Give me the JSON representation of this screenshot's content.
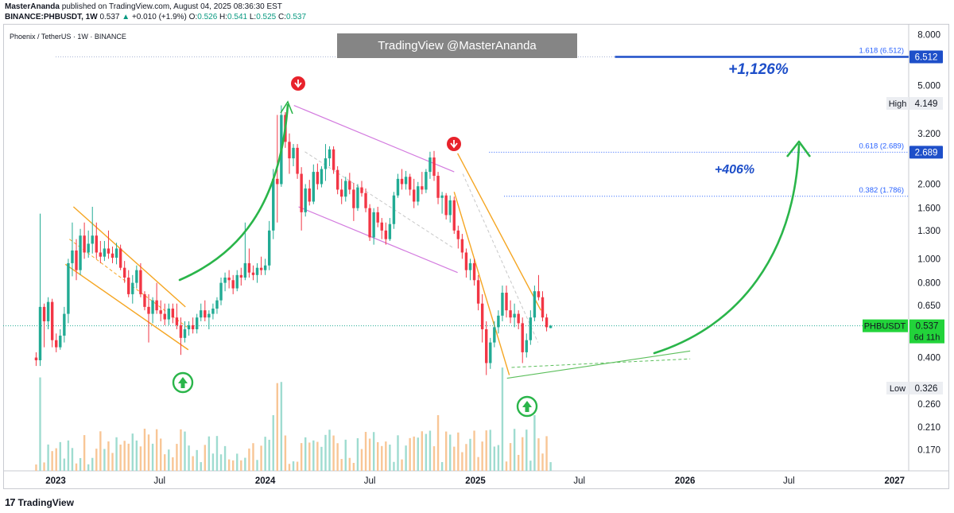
{
  "header": {
    "author": "MasterAnanda",
    "published_text": "published on TradingView.com, August 04, 2025 08:36:30 EST",
    "pair": "BINANCE:PHBUSDT, 1W",
    "last": "0.537",
    "change": "+0.010 (+1.9%)",
    "o_label": "O:",
    "o_val": "0.526",
    "h_label": "H:",
    "h_val": "0.541",
    "l_label": "L:",
    "l_val": "0.525",
    "c_label": "C:",
    "c_val": "0.537"
  },
  "symbol_title": "Phoenix / TetherUS · 1W · BINANCE",
  "watermark": "TradingView @MasterAnanda",
  "footer": {
    "brand": "TradingView",
    "mark": "17"
  },
  "colors": {
    "up": "#22ab94",
    "down": "#f23645",
    "fib_blue": "#2962ff",
    "target_blue": "#1e4fc9",
    "arrow_green": "#2ab54a",
    "channel_orange": "#f5a623",
    "channel_purple": "#d37bdf",
    "price_label_green": "#22d33a"
  },
  "chart_data": {
    "type": "candlestick",
    "scale": "log",
    "ylim": [
      0.155,
      8.4
    ],
    "y_ticks": [
      "8.000",
      "5.000",
      "3.200",
      "2.000",
      "1.600",
      "1.300",
      "1.000",
      "0.800",
      "0.650",
      "0.400",
      "0.260",
      "0.210",
      "0.170"
    ],
    "x_ticks": [
      "2023",
      "Jul",
      "2024",
      "Jul",
      "2025",
      "Jul",
      "2026",
      "Jul",
      "2027"
    ],
    "x_start": "2022-11-28",
    "interval": "1W",
    "candles": [
      [
        0.4,
        0.42,
        0.37,
        0.39
      ],
      [
        0.39,
        1.52,
        0.37,
        0.64
      ],
      [
        0.64,
        0.66,
        0.44,
        0.56
      ],
      [
        0.56,
        0.7,
        0.52,
        0.67
      ],
      [
        0.67,
        0.69,
        0.44,
        0.47
      ],
      [
        0.47,
        0.5,
        0.42,
        0.44
      ],
      [
        0.44,
        0.52,
        0.43,
        0.49
      ],
      [
        0.49,
        0.64,
        0.46,
        0.6
      ],
      [
        0.6,
        1.0,
        0.55,
        0.96
      ],
      [
        0.96,
        1.4,
        0.85,
        1.08
      ],
      [
        1.08,
        1.2,
        0.82,
        0.9
      ],
      [
        0.9,
        1.32,
        0.86,
        1.24
      ],
      [
        1.24,
        1.4,
        1.0,
        1.06
      ],
      [
        1.06,
        1.3,
        1.01,
        1.15
      ],
      [
        1.15,
        1.62,
        1.05,
        1.24
      ],
      [
        1.24,
        1.4,
        1.0,
        1.06
      ],
      [
        1.06,
        1.18,
        0.96,
        1.02
      ],
      [
        1.02,
        1.18,
        0.98,
        1.1
      ],
      [
        1.1,
        1.3,
        1.0,
        1.05
      ],
      [
        1.05,
        1.12,
        0.96,
        1.01
      ],
      [
        1.01,
        1.16,
        0.95,
        1.1
      ],
      [
        1.1,
        1.14,
        0.9,
        0.92
      ],
      [
        0.92,
        0.98,
        0.8,
        0.84
      ],
      [
        0.84,
        0.9,
        0.7,
        0.72
      ],
      [
        0.72,
        0.86,
        0.66,
        0.8
      ],
      [
        0.8,
        0.94,
        0.76,
        0.9
      ],
      [
        0.9,
        0.96,
        0.7,
        0.72
      ],
      [
        0.72,
        0.74,
        0.62,
        0.64
      ],
      [
        0.64,
        0.72,
        0.46,
        0.6
      ],
      [
        0.6,
        0.7,
        0.55,
        0.68
      ],
      [
        0.68,
        0.8,
        0.6,
        0.62
      ],
      [
        0.62,
        0.68,
        0.56,
        0.6
      ],
      [
        0.6,
        0.66,
        0.54,
        0.57
      ],
      [
        0.57,
        0.66,
        0.54,
        0.63
      ],
      [
        0.63,
        0.66,
        0.55,
        0.58
      ],
      [
        0.58,
        0.66,
        0.52,
        0.54
      ],
      [
        0.54,
        0.58,
        0.41,
        0.48
      ],
      [
        0.48,
        0.56,
        0.46,
        0.52
      ],
      [
        0.52,
        0.56,
        0.49,
        0.54
      ],
      [
        0.54,
        0.58,
        0.5,
        0.52
      ],
      [
        0.52,
        0.6,
        0.5,
        0.58
      ],
      [
        0.58,
        0.66,
        0.56,
        0.62
      ],
      [
        0.62,
        0.68,
        0.56,
        0.58
      ],
      [
        0.58,
        0.62,
        0.52,
        0.6
      ],
      [
        0.6,
        0.66,
        0.57,
        0.63
      ],
      [
        0.63,
        0.7,
        0.6,
        0.68
      ],
      [
        0.68,
        0.84,
        0.65,
        0.8
      ],
      [
        0.8,
        0.88,
        0.74,
        0.84
      ],
      [
        0.84,
        0.9,
        0.76,
        0.82
      ],
      [
        0.82,
        0.86,
        0.72,
        0.76
      ],
      [
        0.76,
        0.9,
        0.74,
        0.86
      ],
      [
        0.86,
        0.92,
        0.78,
        0.84
      ],
      [
        0.84,
        1.4,
        0.82,
        0.96
      ],
      [
        0.96,
        1.1,
        0.84,
        0.88
      ],
      [
        0.88,
        0.94,
        0.82,
        0.86
      ],
      [
        0.86,
        0.96,
        0.8,
        0.92
      ],
      [
        0.92,
        1.02,
        0.86,
        0.9
      ],
      [
        0.9,
        1.0,
        0.86,
        0.94
      ],
      [
        0.94,
        1.42,
        0.9,
        1.3
      ],
      [
        1.3,
        2.3,
        1.2,
        2.1
      ],
      [
        2.1,
        3.8,
        1.4,
        2.0
      ],
      [
        2.0,
        4.15,
        1.95,
        3.8
      ],
      [
        3.8,
        3.9,
        2.8,
        2.96
      ],
      [
        2.96,
        3.2,
        2.2,
        2.54
      ],
      [
        2.54,
        2.9,
        2.36,
        2.8
      ],
      [
        2.8,
        2.9,
        2.1,
        2.2
      ],
      [
        2.2,
        2.34,
        1.3,
        1.54
      ],
      [
        1.54,
        2.0,
        1.48,
        1.92
      ],
      [
        1.92,
        2.08,
        1.64,
        1.7
      ],
      [
        1.7,
        2.4,
        1.66,
        2.24
      ],
      [
        2.24,
        2.42,
        1.9,
        2.0
      ],
      [
        2.0,
        2.36,
        1.94,
        2.3
      ],
      [
        2.3,
        2.9,
        2.06,
        2.54
      ],
      [
        2.54,
        2.84,
        2.36,
        2.76
      ],
      [
        2.76,
        2.84,
        2.2,
        2.28
      ],
      [
        2.28,
        2.36,
        1.82,
        1.9
      ],
      [
        1.9,
        2.1,
        1.66,
        1.78
      ],
      [
        1.78,
        2.14,
        1.7,
        2.06
      ],
      [
        2.06,
        2.22,
        1.82,
        1.9
      ],
      [
        1.9,
        2.02,
        1.42,
        1.6
      ],
      [
        1.6,
        2.0,
        1.56,
        1.94
      ],
      [
        1.94,
        2.06,
        1.78,
        1.84
      ],
      [
        1.84,
        1.92,
        1.54,
        1.6
      ],
      [
        1.6,
        1.66,
        1.18,
        1.22
      ],
      [
        1.22,
        1.6,
        1.14,
        1.54
      ],
      [
        1.54,
        1.62,
        1.34,
        1.4
      ],
      [
        1.4,
        1.46,
        1.2,
        1.3
      ],
      [
        1.3,
        1.4,
        1.14,
        1.2
      ],
      [
        1.2,
        1.46,
        1.18,
        1.38
      ],
      [
        1.38,
        1.86,
        1.32,
        1.8
      ],
      [
        1.8,
        2.2,
        1.76,
        2.1
      ],
      [
        2.1,
        2.3,
        1.9,
        2.0
      ],
      [
        2.0,
        2.26,
        1.9,
        2.14
      ],
      [
        2.14,
        2.2,
        1.8,
        1.9
      ],
      [
        1.9,
        2.1,
        1.6,
        1.7
      ],
      [
        1.7,
        2.04,
        1.64,
        1.96
      ],
      [
        1.96,
        2.24,
        1.82,
        1.9
      ],
      [
        1.9,
        2.3,
        1.84,
        2.24
      ],
      [
        2.24,
        2.7,
        2.1,
        2.56
      ],
      [
        2.56,
        2.72,
        2.06,
        2.16
      ],
      [
        2.16,
        2.24,
        1.66,
        1.76
      ],
      [
        1.76,
        1.86,
        1.52,
        1.8
      ],
      [
        1.8,
        1.84,
        1.44,
        1.5
      ],
      [
        1.5,
        1.8,
        1.4,
        1.72
      ],
      [
        1.72,
        1.78,
        1.26,
        1.3
      ],
      [
        1.3,
        1.36,
        1.1,
        1.2
      ],
      [
        1.2,
        1.26,
        1.0,
        1.06
      ],
      [
        1.06,
        1.1,
        0.84,
        0.9
      ],
      [
        0.9,
        1.0,
        0.82,
        0.96
      ],
      [
        0.96,
        1.0,
        0.78,
        0.82
      ],
      [
        0.82,
        0.86,
        0.62,
        0.66
      ],
      [
        0.66,
        0.72,
        0.46,
        0.52
      ],
      [
        0.52,
        0.56,
        0.34,
        0.38
      ],
      [
        0.38,
        0.48,
        0.36,
        0.46
      ],
      [
        0.46,
        0.56,
        0.44,
        0.53
      ],
      [
        0.53,
        0.62,
        0.5,
        0.59
      ],
      [
        0.59,
        0.78,
        0.56,
        0.73
      ],
      [
        0.73,
        0.78,
        0.58,
        0.62
      ],
      [
        0.62,
        0.68,
        0.55,
        0.58
      ],
      [
        0.58,
        0.66,
        0.53,
        0.6
      ],
      [
        0.6,
        0.62,
        0.52,
        0.55
      ],
      [
        0.55,
        0.58,
        0.38,
        0.42
      ],
      [
        0.42,
        0.5,
        0.4,
        0.47
      ],
      [
        0.47,
        0.62,
        0.45,
        0.58
      ],
      [
        0.58,
        0.78,
        0.56,
        0.74
      ],
      [
        0.74,
        0.86,
        0.68,
        0.7
      ],
      [
        0.7,
        0.74,
        0.56,
        0.58
      ],
      [
        0.58,
        0.6,
        0.51,
        0.53
      ],
      [
        0.526,
        0.541,
        0.525,
        0.537
      ]
    ],
    "fib_levels": [
      {
        "label": "1.618 (6.512)",
        "price": 6.512,
        "axis_label": "6.512"
      },
      {
        "label": "0.618 (2.689)",
        "price": 2.689,
        "axis_label": "2.689"
      },
      {
        "label": "0.382 (1.786)",
        "price": 1.786
      }
    ],
    "high_label": {
      "text": "High",
      "value": "4.149",
      "price": 4.149
    },
    "low_label": {
      "text": "Low",
      "value": "0.326",
      "price": 0.326
    },
    "current_label": {
      "symbol": "PHBUSDT",
      "value": "0.537",
      "countdown": "6d 11h",
      "price": 0.537
    },
    "annotations": [
      {
        "text": "+1,126%"
      },
      {
        "text": "+406%"
      }
    ]
  }
}
